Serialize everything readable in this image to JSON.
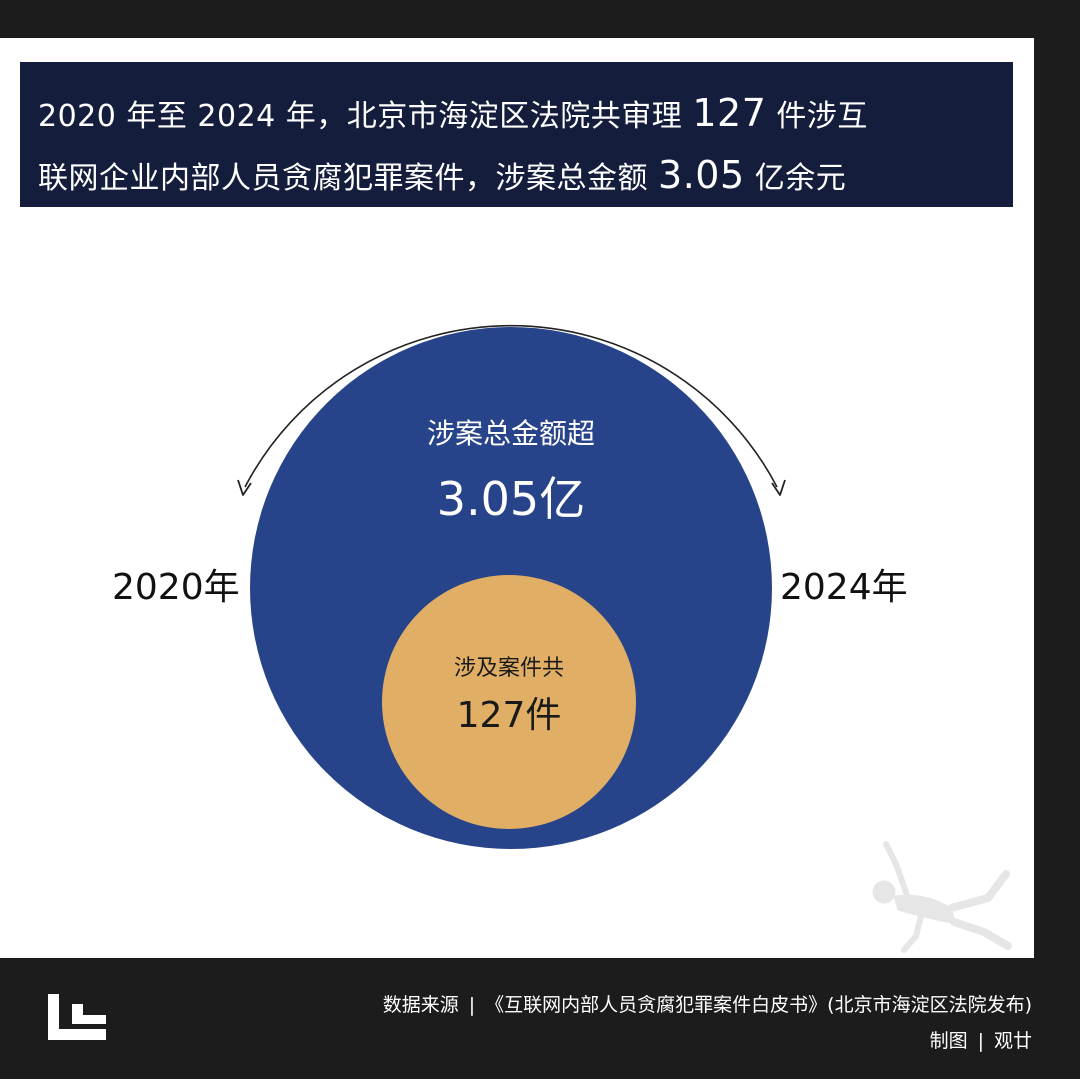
{
  "headline": {
    "line1_a": "2020 年至 2024 年，北京市海淀区法院共审理 ",
    "line1_num": "127",
    "line1_b": " 件涉互",
    "line2_a": "联网企业内部人员贪腐犯罪案件，涉案总金额 ",
    "line2_num": "3.05",
    "line2_b": " 亿余元"
  },
  "graphic": {
    "outer_caption": "涉案总金额超",
    "outer_value": "3.05亿",
    "inner_caption": "涉及案件共",
    "inner_value": "127件",
    "year_start": "2020年",
    "year_end": "2024年"
  },
  "footer": {
    "source_label": "数据来源",
    "separator": "|",
    "source_text": "《互联网内部人员贪腐犯罪案件白皮书》(北京市海淀区法院发布)",
    "credit_label": "制图",
    "credit_value": "观廿"
  },
  "colors": {
    "headline_bg": "#151d3d",
    "outer_circle": "#274389",
    "inner_circle": "#e1ae66",
    "frame": "#1c1c1c"
  },
  "icons": {
    "brand_logo": "stacked-L-logo-icon",
    "decor_figure": "falling-figure-icon",
    "arc_arrows": "curved-arrow-icon"
  }
}
